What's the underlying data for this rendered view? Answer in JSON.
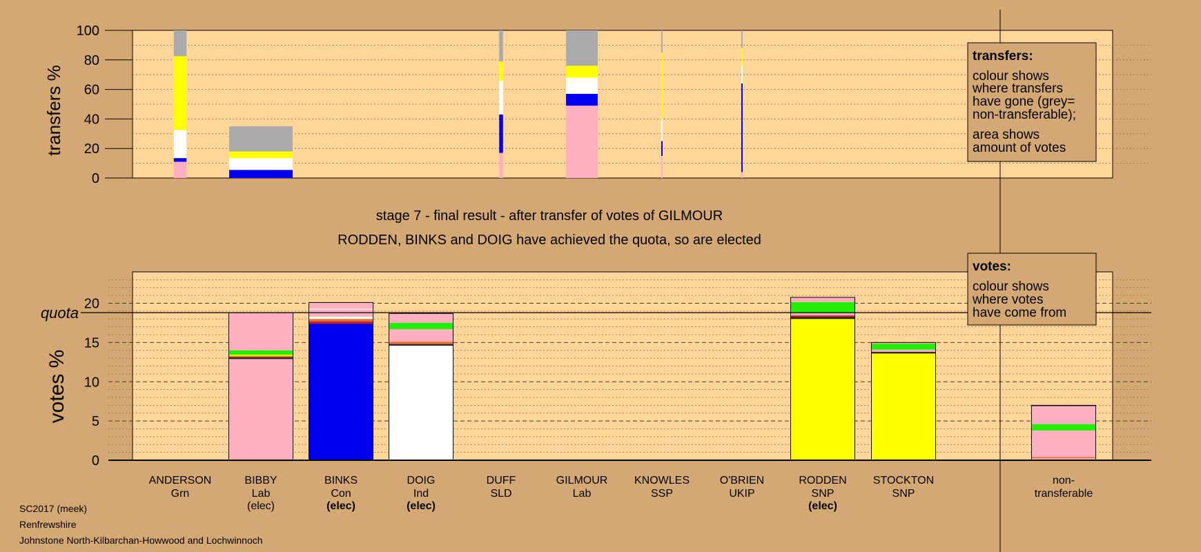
{
  "chart_data": [
    {
      "type": "bar",
      "stacked": true,
      "title": "",
      "ylabel": "transfers %",
      "ylim": [
        0,
        100
      ],
      "yticks": [
        0,
        20,
        40,
        60,
        80,
        100
      ],
      "grid": true,
      "legend": {
        "position": "top-right",
        "heading": "transfers:",
        "lines": [
          "colour shows",
          "where transfers",
          "have gone (grey=",
          "non-transferable);"
        ],
        "lines2": [
          "area shows",
          "amount of votes"
        ]
      },
      "bars": [
        {
          "candidate": "ANDERSON",
          "width": 0.2,
          "segments": [
            [
              "pink",
              11
            ],
            [
              "blue",
              2.5
            ],
            [
              "white",
              19
            ],
            [
              "yellow",
              50
            ],
            [
              "grey",
              17.5
            ]
          ]
        },
        {
          "candidate": "BIBBY",
          "width": 1.0,
          "segments": [
            [
              "blue",
              5.5
            ],
            [
              "white",
              8
            ],
            [
              "yellow",
              4.5
            ],
            [
              "grey",
              17
            ]
          ]
        },
        {
          "candidate": "DUFF",
          "width": 0.06,
          "segments": [
            [
              "pink",
              17
            ],
            [
              "blue",
              26
            ],
            [
              "white",
              23
            ],
            [
              "yellow",
              13
            ],
            [
              "grey",
              21
            ]
          ]
        },
        {
          "candidate": "GILMOUR",
          "width": 0.5,
          "segments": [
            [
              "pink",
              49
            ],
            [
              "blue",
              8
            ],
            [
              "white",
              11
            ],
            [
              "yellow",
              8
            ],
            [
              "grey",
              24
            ]
          ]
        },
        {
          "candidate": "KNOWLES",
          "width": 0.02,
          "segments": [
            [
              "pink",
              15
            ],
            [
              "blue",
              10
            ],
            [
              "white",
              15
            ],
            [
              "yellow",
              45
            ],
            [
              "grey",
              15
            ]
          ]
        },
        {
          "candidate": "O'BRIEN",
          "width": 0.02,
          "segments": [
            [
              "pink",
              4
            ],
            [
              "blue",
              60
            ],
            [
              "white",
              12
            ],
            [
              "yellow",
              12
            ],
            [
              "grey",
              12
            ]
          ]
        }
      ]
    },
    {
      "type": "bar",
      "stacked": true,
      "title": "stage 7 - final result - after transfer of votes of GILMOUR",
      "subtitle": "RODDEN, BINKS and DOIG have achieved the quota, so are elected",
      "ylabel": "votes %",
      "ylim": [
        0,
        24
      ],
      "yticks": [
        0,
        5,
        10,
        15,
        20
      ],
      "quota": 18.8,
      "quota_label": "quota",
      "grid": true,
      "legend": {
        "position": "top-right",
        "heading": "votes:",
        "lines": [
          "colour shows",
          "where votes",
          "have come from"
        ]
      },
      "bars": [
        {
          "candidate": "BIBBY",
          "segments": [
            [
              "pink",
              12.9
            ],
            [
              "black",
              0.2
            ],
            [
              "orange",
              0.2
            ],
            [
              "yellow",
              0.15
            ],
            [
              "green",
              0.55
            ],
            [
              "pink",
              4.8
            ]
          ]
        },
        {
          "candidate": "BINKS",
          "segments": [
            [
              "blue",
              17.4
            ],
            [
              "red",
              0.3
            ],
            [
              "orange",
              0.3
            ],
            [
              "white",
              0.3
            ],
            [
              "pink",
              0.9
            ],
            [
              "white",
              0.1
            ],
            [
              "pink",
              0.8
            ]
          ]
        },
        {
          "candidate": "DOIG",
          "segments": [
            [
              "white",
              14.6
            ],
            [
              "black",
              0.2
            ],
            [
              "orange",
              0.3
            ],
            [
              "pink",
              1.6
            ],
            [
              "green",
              0.8
            ],
            [
              "pink",
              1.2
            ]
          ]
        },
        {
          "candidate": "RODDEN",
          "segments": [
            [
              "yellow",
              18.0
            ],
            [
              "black",
              0.25
            ],
            [
              "red",
              0.2
            ],
            [
              "pink",
              0.3
            ],
            [
              "green",
              1.4
            ],
            [
              "pink",
              0.6
            ]
          ]
        },
        {
          "candidate": "STOCKTON",
          "segments": [
            [
              "yellow",
              13.6
            ],
            [
              "black",
              0.2
            ],
            [
              "pink",
              0.3
            ],
            [
              "green",
              0.75
            ],
            [
              "pink",
              0.15
            ]
          ]
        },
        {
          "candidate": "non-transferable",
          "segments": [
            [
              "red",
              0.1
            ],
            [
              "pink",
              0.15
            ],
            [
              "orange",
              0.15
            ],
            [
              "pink",
              3.4
            ],
            [
              "green",
              0.8
            ],
            [
              "pink",
              2.3
            ],
            [
              "black",
              0.1
            ]
          ]
        }
      ]
    }
  ],
  "candidates": [
    {
      "name": "ANDERSON",
      "party": "Grn",
      "status": ""
    },
    {
      "name": "BIBBY",
      "party": "Lab",
      "status": "(elec)"
    },
    {
      "name": "BINKS",
      "party": "Con",
      "status": "(elec)"
    },
    {
      "name": "DOIG",
      "party": "Ind",
      "status": "(elec)"
    },
    {
      "name": "DUFF",
      "party": "SLD",
      "status": ""
    },
    {
      "name": "GILMOUR",
      "party": "Lab",
      "status": ""
    },
    {
      "name": "KNOWLES",
      "party": "SSP",
      "status": ""
    },
    {
      "name": "O'BRIEN",
      "party": "UKIP",
      "status": ""
    },
    {
      "name": "RODDEN",
      "party": "SNP",
      "status": "(elec)"
    },
    {
      "name": "STOCKTON",
      "party": "SNP",
      "status": ""
    }
  ],
  "nontransferable_label": [
    "non-",
    "transferable"
  ],
  "footer": {
    "line1": "SC2017 (meek)",
    "line2": "Renfrewshire",
    "line3": "Johnstone North-Kilbarchan-Howwood and Lochwinnoch"
  },
  "colors": {
    "pink": "#ffb0c0",
    "blue": "#0000ee",
    "white": "#ffffff",
    "yellow": "#ffff00",
    "grey": "#aaaaaa",
    "green": "#22ee00",
    "red": "#cc2020",
    "orange": "#e07030",
    "black": "#222222",
    "plot_bg": "#ffd59a",
    "page_bg": "#d4a873"
  }
}
